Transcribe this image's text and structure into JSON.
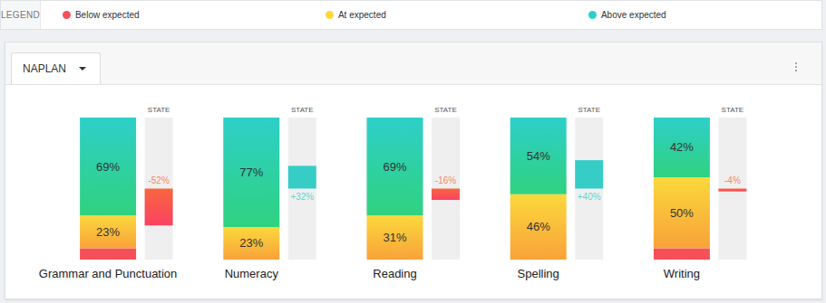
{
  "page": {
    "legend_title": "LEGEND",
    "tab": "NAPLAN"
  },
  "chart_data": [
    {
      "type": "bar",
      "stacked": true,
      "data_labels": true,
      "tick_labels": "x",
      "legend": "top",
      "categories": [
        "Grammar and Punctuation",
        "Numeracy",
        "Reading",
        "Spelling",
        "Writing"
      ],
      "ylim": [
        0,
        100
      ],
      "series": [
        {
          "name": "Below expected",
          "color": "#f5505a",
          "values": [
            8,
            0,
            0,
            0,
            8
          ],
          "value_labels": [
            null,
            null,
            null,
            null,
            null
          ]
        },
        {
          "name": "At expected",
          "color": "#fbd83c",
          "values": [
            23,
            23,
            31,
            46,
            50
          ],
          "value_labels": [
            "23%",
            "23%",
            "31%",
            "46%",
            "50%"
          ]
        },
        {
          "name": "Above expected",
          "color": "#2ecfc9",
          "values": [
            69,
            77,
            69,
            54,
            42
          ],
          "value_labels": [
            "69%",
            "77%",
            "69%",
            "54%",
            "42%"
          ]
        }
      ]
    },
    {
      "type": "bar",
      "title": "STATE",
      "data_labels": true,
      "tick_labels": false,
      "categories": [
        "Grammar and Punctuation",
        "Numeracy",
        "Reading",
        "Spelling",
        "Writing"
      ],
      "ylim": [
        -100,
        100
      ],
      "values": [
        -52,
        32,
        -16,
        40,
        -4
      ],
      "value_labels": [
        "-52%",
        "+32%",
        "-16%",
        "+40%",
        "-4%"
      ],
      "colors": [
        "#f7663e",
        "#36cdc6",
        "#f7663e",
        "#36cdc6",
        "#f7663e"
      ]
    }
  ]
}
